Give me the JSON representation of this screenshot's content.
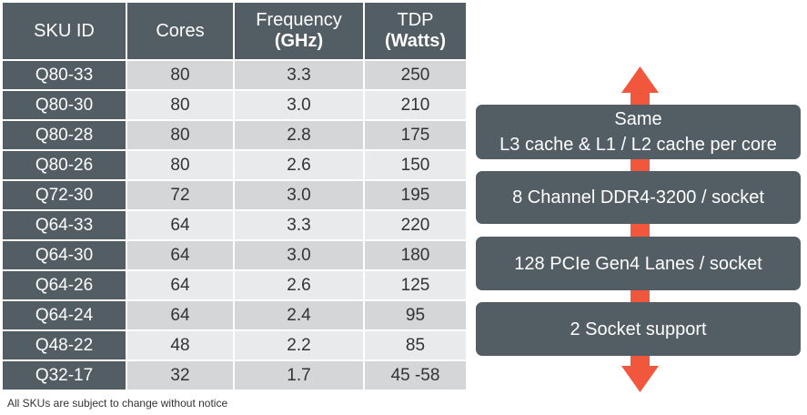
{
  "table": {
    "headers": {
      "sku_id": "SKU ID",
      "cores": "Cores",
      "frequency": "Frequency",
      "frequency_unit": "(GHz)",
      "tdp": "TDP",
      "tdp_unit": "(Watts)"
    },
    "rows": [
      {
        "sku": "Q80-33",
        "cores": "80",
        "freq": "3.3",
        "tdp": "250"
      },
      {
        "sku": "Q80-30",
        "cores": "80",
        "freq": "3.0",
        "tdp": "210"
      },
      {
        "sku": "Q80-28",
        "cores": "80",
        "freq": "2.8",
        "tdp": "175"
      },
      {
        "sku": "Q80-26",
        "cores": "80",
        "freq": "2.6",
        "tdp": "150"
      },
      {
        "sku": "Q72-30",
        "cores": "72",
        "freq": "3.0",
        "tdp": "195"
      },
      {
        "sku": "Q64-33",
        "cores": "64",
        "freq": "3.3",
        "tdp": "220"
      },
      {
        "sku": "Q64-30",
        "cores": "64",
        "freq": "3.0",
        "tdp": "180"
      },
      {
        "sku": "Q64-26",
        "cores": "64",
        "freq": "2.6",
        "tdp": "125"
      },
      {
        "sku": "Q64-24",
        "cores": "64",
        "freq": "2.4",
        "tdp": "95"
      },
      {
        "sku": "Q48-22",
        "cores": "48",
        "freq": "2.2",
        "tdp": "85"
      },
      {
        "sku": "Q32-17",
        "cores": "32",
        "freq": "1.7",
        "tdp": "45 -58"
      }
    ]
  },
  "footnote": "All SKUs are subject to change without notice",
  "features": [
    {
      "line1": "Same",
      "line2": "L3 cache & L1 / L2 cache per core"
    },
    {
      "line1": "8 Channel DDR4-3200 / socket"
    },
    {
      "line1": "128 PCIe Gen4 Lanes / socket"
    },
    {
      "line1": "2 Socket support"
    }
  ],
  "colors": {
    "header_bg": "#525d64",
    "arrow": "#f0573c",
    "row_odd": "#d4d6d8",
    "row_even": "#e9eaeb"
  },
  "icons": {
    "arrow": "double-headed-vertical-arrow"
  }
}
